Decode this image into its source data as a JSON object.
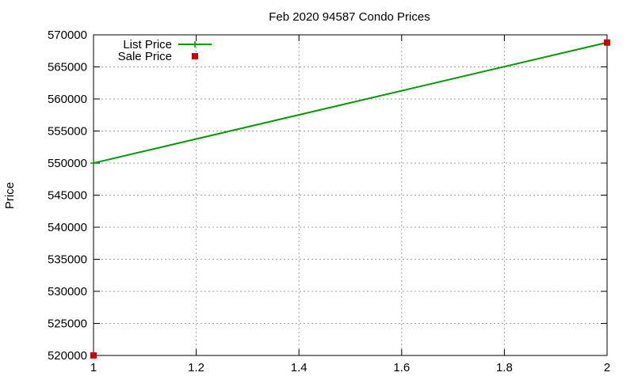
{
  "chart_data": {
    "type": "line",
    "title": "Feb 2020 94587 Condo Prices",
    "xlabel": "",
    "ylabel": "Price",
    "xlim": [
      1,
      2
    ],
    "ylim": [
      520000,
      570000
    ],
    "x_ticks": [
      "1",
      "1.2",
      "1.4",
      "1.6",
      "1.8",
      "2"
    ],
    "y_ticks": [
      "520000",
      "525000",
      "530000",
      "535000",
      "540000",
      "545000",
      "550000",
      "555000",
      "560000",
      "565000",
      "570000"
    ],
    "grid": true,
    "legend_position": "top-left",
    "series": [
      {
        "name": "List Price",
        "style": "linespoints",
        "color": "#009900",
        "points": [
          {
            "x": 1,
            "y": 550000
          },
          {
            "x": 2,
            "y": 568800
          }
        ]
      },
      {
        "name": "Sale Price",
        "style": "points",
        "color": "#cc0000",
        "points": [
          {
            "x": 1,
            "y": 520000
          },
          {
            "x": 2,
            "y": 568800
          }
        ]
      }
    ]
  }
}
